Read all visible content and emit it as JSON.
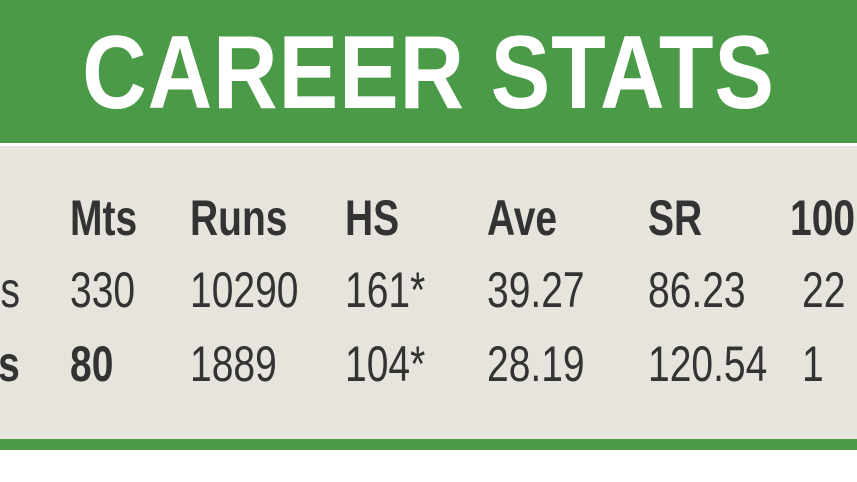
{
  "title": "CAREER STATS",
  "colors": {
    "green": "#4a9a48",
    "panel": "#e6e4dc",
    "text": "#333333"
  },
  "table": {
    "headers": [
      "Mts",
      "Runs",
      "HS",
      "Ave",
      "SR",
      "100"
    ],
    "rows": [
      {
        "label": "s",
        "label_bold": false,
        "values": [
          "330",
          "10290",
          "161*",
          "39.27",
          "86.23",
          "22"
        ]
      },
      {
        "label": "s",
        "label_bold": true,
        "values": [
          "80",
          "1889",
          "104*",
          "28.19",
          "120.54",
          "1"
        ]
      }
    ]
  }
}
